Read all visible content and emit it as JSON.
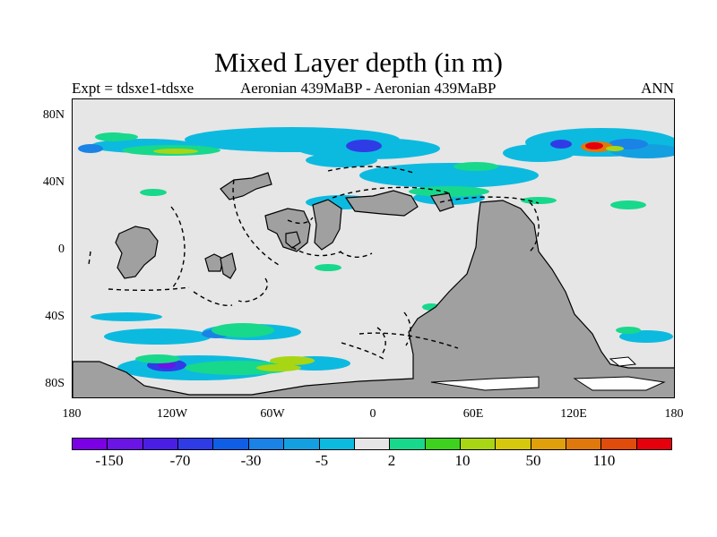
{
  "title": "Mixed Layer depth (in m)",
  "left_subtitle": "Expt = tdsxe1-tdsxe",
  "center_subtitle": "Aeronian 439MaBP - Aeronian 439MaBP",
  "right_subtitle": "ANN",
  "lat_labels": [
    "80N",
    "40N",
    "0",
    "40S",
    "80S"
  ],
  "lon_labels": [
    "180",
    "120W",
    "60W",
    "0",
    "60E",
    "120E",
    "180"
  ],
  "colorbar": {
    "colors": [
      "#7c00e6",
      "#6a14e6",
      "#4b1ee6",
      "#2f3ce6",
      "#0f5fe6",
      "#1b82e6",
      "#14a0e0",
      "#0cbae0",
      "#e6e6e6",
      "#18d88c",
      "#3ed21e",
      "#a8d614",
      "#d6c80c",
      "#dfa00c",
      "#e0780c",
      "#e04c0c",
      "#e6000c"
    ],
    "labels": [
      "-150",
      "-70",
      "-30",
      "-5",
      "2",
      "10",
      "50",
      "110"
    ]
  }
}
